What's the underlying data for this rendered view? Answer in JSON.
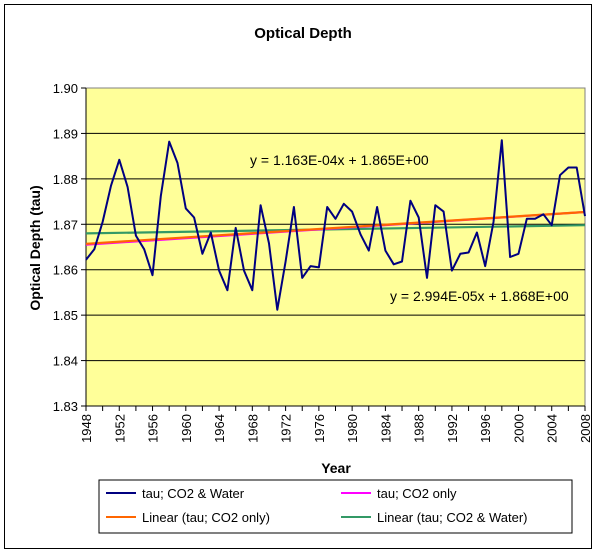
{
  "chart_data": {
    "type": "line",
    "title": "Optical Depth",
    "xlabel": "Year",
    "ylabel": "Optical Depth (tau)",
    "xlim": [
      1948,
      2008
    ],
    "ylim": [
      1.83,
      1.9
    ],
    "y_ticks": [
      "1.83",
      "1.84",
      "1.85",
      "1.86",
      "1.87",
      "1.88",
      "1.89",
      "1.90"
    ],
    "x_ticks": [
      "1948",
      "1952",
      "1956",
      "1960",
      "1964",
      "1968",
      "1972",
      "1976",
      "1980",
      "1984",
      "1988",
      "1992",
      "1996",
      "2000",
      "2004",
      "2008"
    ],
    "grid": "horizontal",
    "background": "#ffff99",
    "series": [
      {
        "name": "tau; CO2 & Water",
        "color": "#000080",
        "x": [
          1948,
          1949,
          1950,
          1951,
          1952,
          1953,
          1954,
          1955,
          1956,
          1957,
          1958,
          1959,
          1960,
          1961,
          1962,
          1963,
          1964,
          1965,
          1966,
          1967,
          1968,
          1969,
          1970,
          1971,
          1972,
          1973,
          1974,
          1975,
          1976,
          1977,
          1978,
          1979,
          1980,
          1981,
          1982,
          1983,
          1984,
          1985,
          1986,
          1987,
          1988,
          1989,
          1990,
          1991,
          1992,
          1993,
          1994,
          1995,
          1996,
          1997,
          1998,
          1999,
          2000,
          2001,
          2002,
          2003,
          2004,
          2005,
          2006,
          2007,
          2008
        ],
        "values": [
          1.8622,
          1.8645,
          1.8705,
          1.8785,
          1.8842,
          1.8782,
          1.8675,
          1.8645,
          1.8588,
          1.8762,
          1.8882,
          1.8835,
          1.8735,
          1.8715,
          1.8635,
          1.8682,
          1.8598,
          1.8555,
          1.8692,
          1.8598,
          1.8555,
          1.8742,
          1.8658,
          1.8512,
          1.8618,
          1.8738,
          1.8582,
          1.8608,
          1.8605,
          1.8738,
          1.8712,
          1.8745,
          1.8728,
          1.8678,
          1.8642,
          1.8738,
          1.8642,
          1.8612,
          1.8618,
          1.8752,
          1.8715,
          1.8582,
          1.8742,
          1.8728,
          1.8598,
          1.8635,
          1.8638,
          1.8682,
          1.8608,
          1.8705,
          1.8885,
          1.8628,
          1.8635,
          1.8712,
          1.8712,
          1.8722,
          1.8698,
          1.8808,
          1.8825,
          1.8825,
          1.8718
        ]
      },
      {
        "name": "tau; CO2 only",
        "color": "#ff00ff",
        "x": [
          1948,
          2008
        ],
        "values": [
          1.8655,
          1.8727
        ]
      },
      {
        "name": "Linear (tau; CO2 only)",
        "color": "#ff6600",
        "x": [
          1948,
          2008
        ],
        "values": [
          1.8657,
          1.8727
        ]
      },
      {
        "name": "Linear (tau; CO2 & Water)",
        "color": "#339966",
        "x": [
          1948,
          2008
        ],
        "values": [
          1.868,
          1.8698
        ]
      }
    ],
    "annotations": [
      {
        "id": "eq1",
        "text": "y = 1.163E-04x + 1.865E+00"
      },
      {
        "id": "eq2",
        "text": "y = 2.994E-05x + 1.868E+00"
      }
    ],
    "legend": {
      "position": "bottom",
      "entries": [
        "tau; CO2 & Water",
        "tau; CO2 only",
        "Linear (tau; CO2 only)",
        "Linear (tau; CO2 & Water)"
      ]
    }
  }
}
